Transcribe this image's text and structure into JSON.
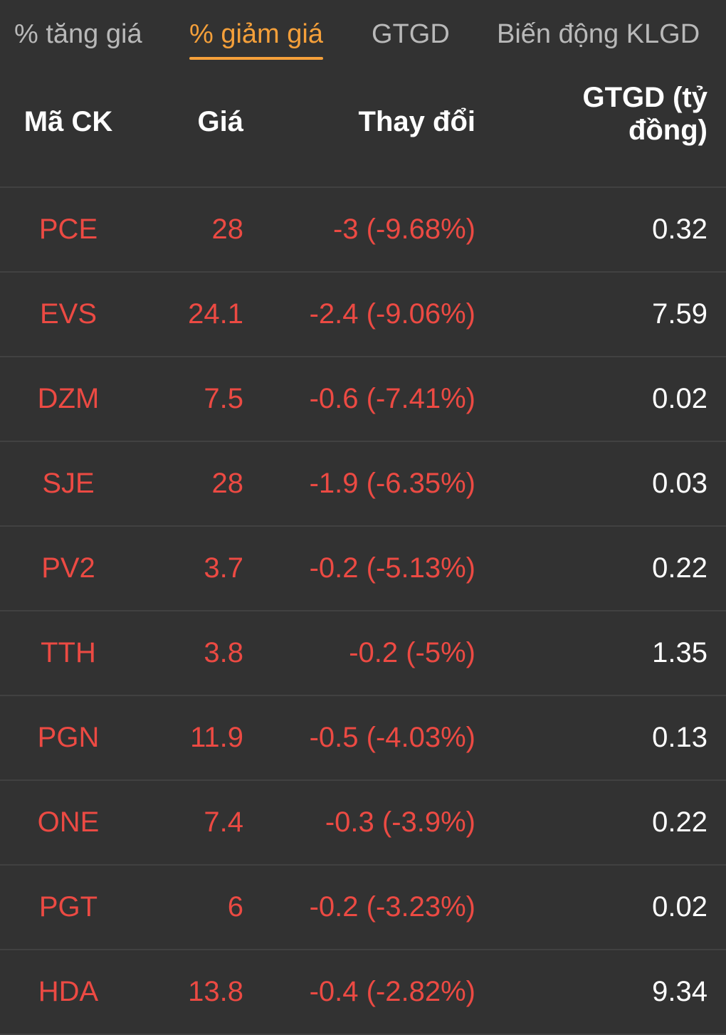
{
  "tabs": [
    {
      "label": "% tăng giá",
      "active": false
    },
    {
      "label": "% giảm giá",
      "active": true
    },
    {
      "label": "GTGD",
      "active": false
    },
    {
      "label": "Biến động KLGD",
      "active": false
    }
  ],
  "table": {
    "headers": {
      "symbol": "Mã CK",
      "price": "Giá",
      "change": "Thay đổi",
      "value": "GTGD (tỷ đồng)"
    },
    "rows": [
      {
        "symbol": "PCE",
        "price": "28",
        "change": "-3 (-9.68%)",
        "value": "0.32"
      },
      {
        "symbol": "EVS",
        "price": "24.1",
        "change": "-2.4 (-9.06%)",
        "value": "7.59"
      },
      {
        "symbol": "DZM",
        "price": "7.5",
        "change": "-0.6 (-7.41%)",
        "value": "0.02"
      },
      {
        "symbol": "SJE",
        "price": "28",
        "change": "-1.9 (-6.35%)",
        "value": "0.03"
      },
      {
        "symbol": "PV2",
        "price": "3.7",
        "change": "-0.2 (-5.13%)",
        "value": "0.22"
      },
      {
        "symbol": "TTH",
        "price": "3.8",
        "change": "-0.2 (-5%)",
        "value": "1.35"
      },
      {
        "symbol": "PGN",
        "price": "11.9",
        "change": "-0.5 (-4.03%)",
        "value": "0.13"
      },
      {
        "symbol": "ONE",
        "price": "7.4",
        "change": "-0.3 (-3.9%)",
        "value": "0.22"
      },
      {
        "symbol": "PGT",
        "price": "6",
        "change": "-0.2 (-3.23%)",
        "value": "0.02"
      },
      {
        "symbol": "HDA",
        "price": "13.8",
        "change": "-0.4 (-2.82%)",
        "value": "9.34"
      }
    ]
  },
  "colors": {
    "background": "#323232",
    "active_tab": "#f5a03a",
    "inactive_tab": "#b9b9b9",
    "decrease": "#ec4a43",
    "text": "#ffffff",
    "divider": "#414141"
  }
}
